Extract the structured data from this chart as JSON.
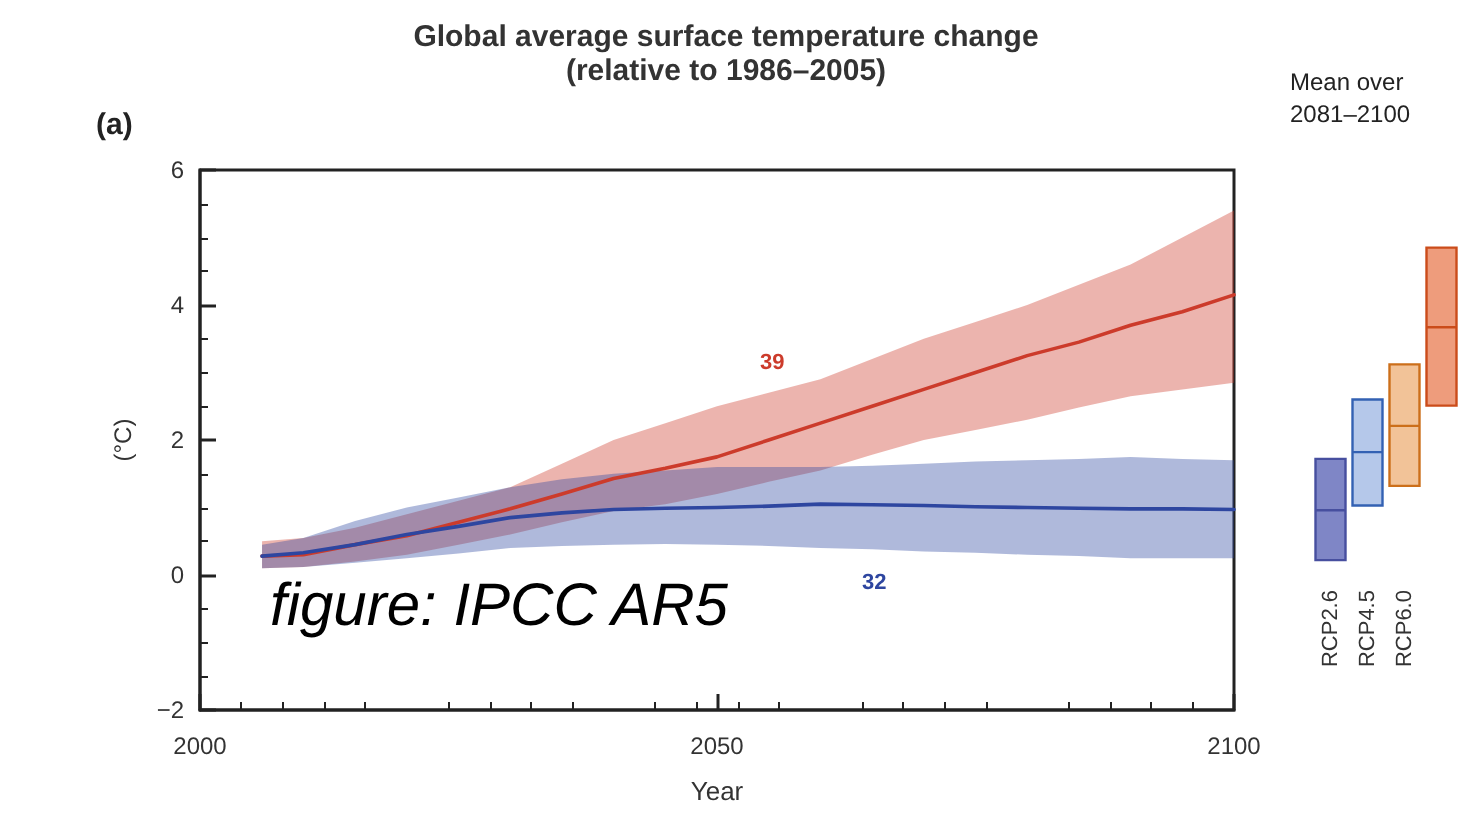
{
  "chart_data": [
    {
      "type": "line",
      "title": "Global average surface temperature change",
      "subtitle": "(relative to 1986–2005)",
      "xlabel": "Year",
      "ylabel": "(°C)",
      "xlim": [
        2000,
        2100
      ],
      "xticks": [
        2000,
        2050,
        2100
      ],
      "ylim": [
        -2,
        6
      ],
      "yticks": [
        -2,
        0,
        2,
        4,
        6
      ],
      "grid": false,
      "marker": "none",
      "line_style": "solid",
      "series": [
        {
          "color": "#cc3b2b",
          "x": [
            2006,
            2010,
            2015,
            2020,
            2025,
            2030,
            2035,
            2040,
            2045,
            2050,
            2055,
            2060,
            2065,
            2070,
            2075,
            2080,
            2085,
            2090,
            2095,
            2100
          ],
          "values": [
            0.28,
            0.3,
            0.45,
            0.58,
            0.78,
            0.98,
            1.2,
            1.43,
            1.58,
            1.75,
            2.0,
            2.25,
            2.5,
            2.75,
            3.0,
            3.25,
            3.45,
            3.7,
            3.9,
            4.15
          ],
          "lower": [
            0.1,
            0.12,
            0.2,
            0.3,
            0.45,
            0.6,
            0.78,
            0.95,
            1.05,
            1.2,
            1.38,
            1.55,
            1.78,
            2.0,
            2.15,
            2.3,
            2.48,
            2.65,
            2.75,
            2.85
          ],
          "upper": [
            0.5,
            0.55,
            0.7,
            0.9,
            1.1,
            1.3,
            1.65,
            2.0,
            2.25,
            2.5,
            2.7,
            2.9,
            3.2,
            3.5,
            3.75,
            4.0,
            4.3,
            4.6,
            5.0,
            5.4
          ]
        },
        {
          "color": "#2e46a0",
          "x": [
            2006,
            2010,
            2015,
            2020,
            2025,
            2030,
            2035,
            2040,
            2045,
            2050,
            2055,
            2060,
            2065,
            2070,
            2075,
            2080,
            2085,
            2090,
            2095,
            2100
          ],
          "values": [
            0.28,
            0.33,
            0.45,
            0.6,
            0.72,
            0.85,
            0.92,
            0.97,
            0.99,
            1.0,
            1.02,
            1.05,
            1.04,
            1.03,
            1.01,
            1.0,
            0.99,
            0.98,
            0.98,
            0.97
          ],
          "lower": [
            0.1,
            0.12,
            0.18,
            0.25,
            0.32,
            0.4,
            0.43,
            0.45,
            0.46,
            0.45,
            0.43,
            0.4,
            0.38,
            0.35,
            0.33,
            0.3,
            0.28,
            0.25,
            0.25,
            0.25
          ],
          "upper": [
            0.45,
            0.55,
            0.8,
            1.0,
            1.15,
            1.3,
            1.42,
            1.5,
            1.55,
            1.6,
            1.6,
            1.6,
            1.62,
            1.65,
            1.68,
            1.7,
            1.72,
            1.75,
            1.72,
            1.7
          ]
        }
      ],
      "annotations": [
        "39",
        "32",
        "(a)",
        "figure: IPCC AR5"
      ]
    },
    {
      "type": "box",
      "title": "Mean over\n2081–2100",
      "categories": [
        "RCP2.6",
        "RCP4.5",
        "RCP6.0",
        null
      ],
      "ylim": [
        -2,
        6
      ],
      "tick_labels": "x",
      "colors": [
        "#7f86c6",
        "#b5c8ea",
        "#f2c398",
        "#ee9c7c"
      ],
      "boxes": [
        {
          "low": 0.22,
          "q1": 0.22,
          "median": 0.96,
          "q3": 1.72,
          "high": 1.72
        },
        {
          "low": 1.03,
          "q1": 1.03,
          "median": 1.82,
          "q3": 2.6,
          "high": 2.6
        },
        {
          "low": 1.32,
          "q1": 1.32,
          "median": 2.21,
          "q3": 3.12,
          "high": 3.12
        },
        {
          "low": 2.51,
          "q1": 2.51,
          "median": 3.67,
          "q3": 4.85,
          "high": 4.85
        }
      ]
    }
  ]
}
